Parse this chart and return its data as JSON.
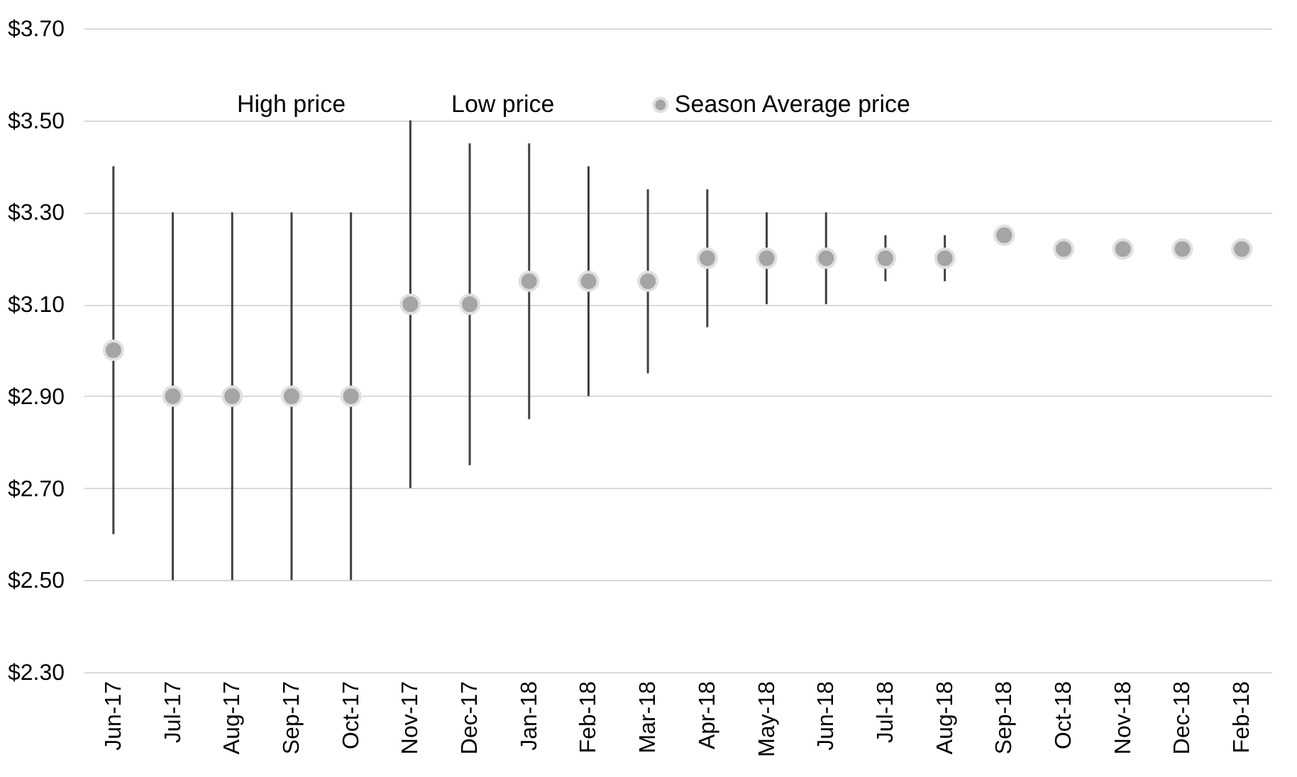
{
  "chart_data": {
    "type": "scatter",
    "categories": [
      "Jun-17",
      "Jul-17",
      "Aug-17",
      "Sep-17",
      "Oct-17",
      "Nov-17",
      "Dec-17",
      "Jan-18",
      "Feb-18",
      "Mar-18",
      "Apr-18",
      "May-18",
      "Jun-18",
      "Jul-18",
      "Aug-18",
      "Sep-18",
      "Oct-18",
      "Nov-18",
      "Dec-18",
      "Feb-18"
    ],
    "series": [
      {
        "name": "Season Average price",
        "marker": "circle",
        "color": "#a5a5a5",
        "values": [
          3.0,
          2.9,
          2.9,
          2.9,
          2.9,
          3.1,
          3.1,
          3.15,
          3.15,
          3.15,
          3.2,
          3.2,
          3.2,
          3.2,
          3.2,
          3.25,
          3.22,
          3.22,
          3.22,
          3.22
        ],
        "errors": [
          [
            2.6,
            3.4
          ],
          [
            2.5,
            3.3
          ],
          [
            2.5,
            3.3
          ],
          [
            2.5,
            3.3
          ],
          [
            2.5,
            3.3
          ],
          [
            2.7,
            3.5
          ],
          [
            2.75,
            3.45
          ],
          [
            2.85,
            3.45
          ],
          [
            2.9,
            3.4
          ],
          [
            2.95,
            3.35
          ],
          [
            3.05,
            3.35
          ],
          [
            3.1,
            3.3
          ],
          [
            3.1,
            3.3
          ],
          [
            3.15,
            3.25
          ],
          [
            3.15,
            3.25
          ],
          null,
          null,
          null,
          null,
          null
        ]
      }
    ],
    "annotations": [
      "High price",
      "Low price"
    ],
    "ylim": [
      2.3,
      3.7
    ],
    "yticks": [
      {
        "value": 2.3,
        "label": "$2.30"
      },
      {
        "value": 2.5,
        "label": "$2.50"
      },
      {
        "value": 2.7,
        "label": "$2.70"
      },
      {
        "value": 2.9,
        "label": "$2.90"
      },
      {
        "value": 3.1,
        "label": "$3.10"
      },
      {
        "value": 3.3,
        "label": "$3.30"
      },
      {
        "value": 3.5,
        "label": "$3.50"
      },
      {
        "value": 3.7,
        "label": "$3.70"
      }
    ],
    "grid": "y",
    "legend": "top"
  }
}
